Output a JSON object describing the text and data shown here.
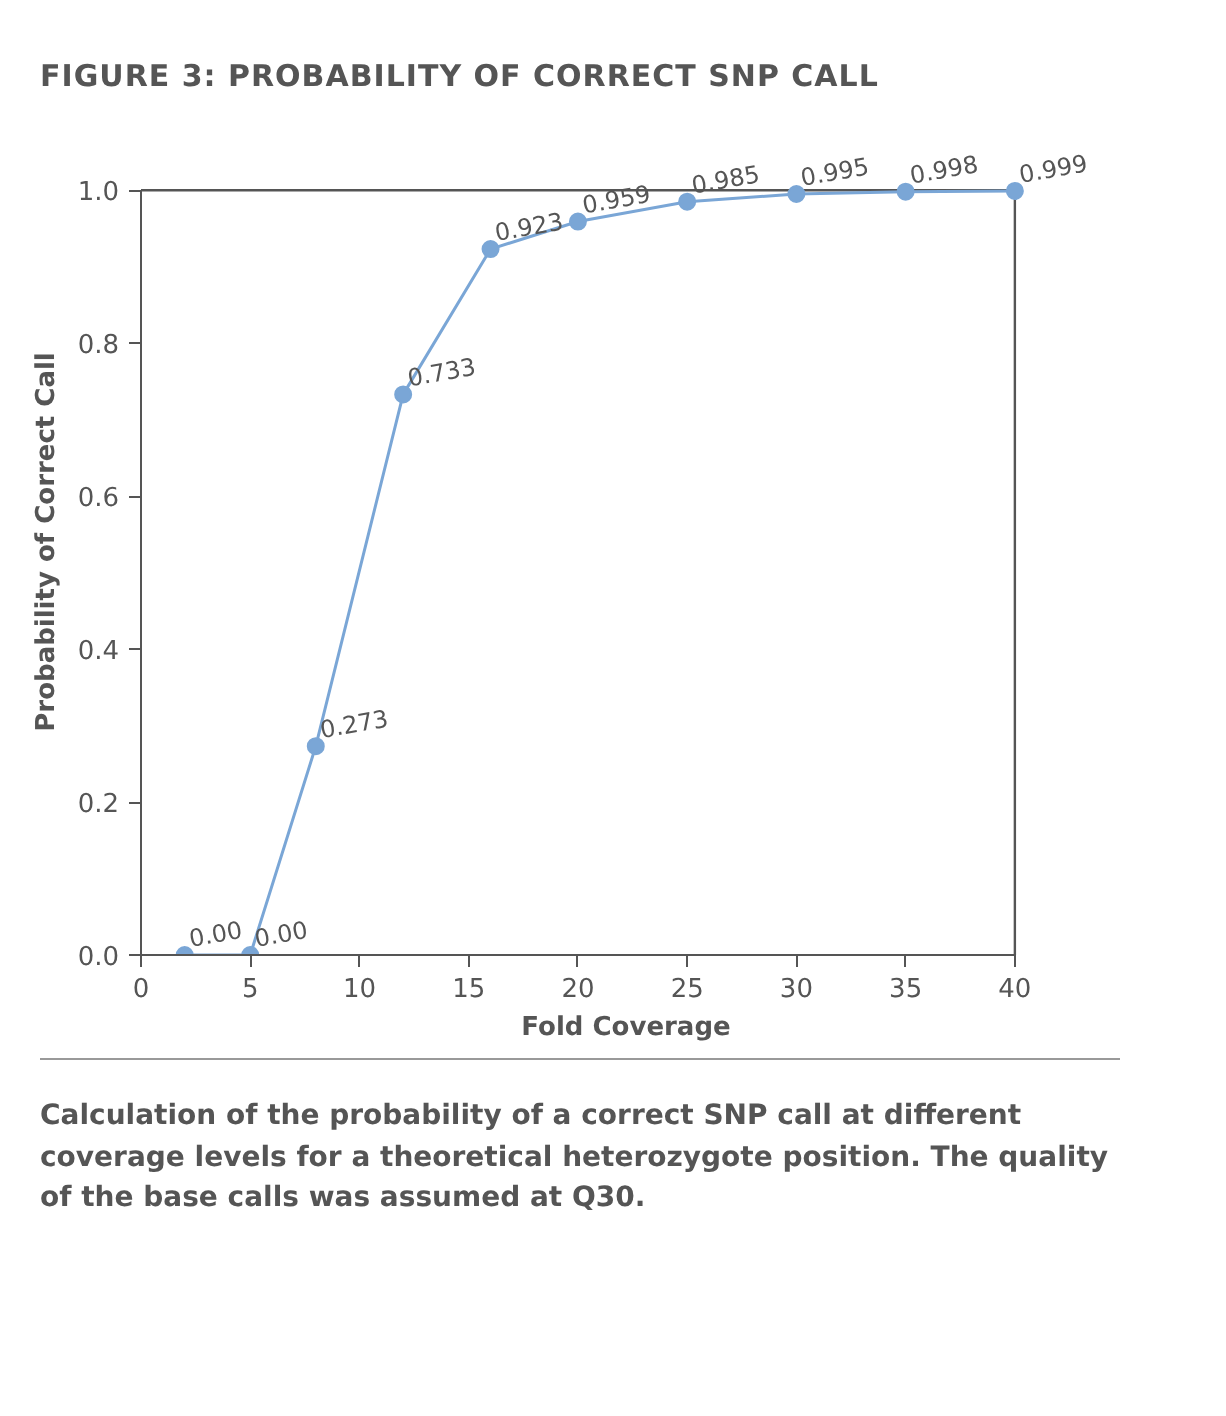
{
  "chart_data": {
    "type": "line",
    "title": "FIGURE 3: PROBABILITY OF CORRECT SNP CALL",
    "xlabel": "Fold Coverage",
    "ylabel": "Probability of Correct Call",
    "x": [
      2,
      5,
      8,
      12,
      16,
      20,
      25,
      30,
      35,
      40
    ],
    "values": [
      0,
      0,
      0.273,
      0.733,
      0.923,
      0.959,
      0.985,
      0.995,
      0.998,
      0.999
    ],
    "value_labels": [
      "0.00",
      "0.00",
      "0.273",
      "0.733",
      "0.923",
      "0.959",
      "0.985",
      "0.995",
      "0.998",
      "0.999"
    ],
    "color": "#7aa6d6",
    "marker": "circle",
    "line_style": "solid",
    "grid": false,
    "xlim": [
      0,
      40
    ],
    "ylim": [
      0,
      1
    ],
    "xticks": [
      0,
      5,
      10,
      15,
      20,
      25,
      30,
      35,
      40
    ],
    "yticks": [
      {
        "value": 0,
        "label": "0.0"
      },
      {
        "value": 0.2,
        "label": "0.2"
      },
      {
        "value": 0.4,
        "label": "0.4"
      },
      {
        "value": 0.6,
        "label": "0.6"
      },
      {
        "value": 0.8,
        "label": "0.8"
      },
      {
        "value": 1,
        "label": "1.0"
      }
    ],
    "annotations": [
      "Calculation of the probability of a correct SNP call at different coverage levels for a theoretical heterozygote position. The quality of the base calls was assumed at Q30."
    ]
  }
}
